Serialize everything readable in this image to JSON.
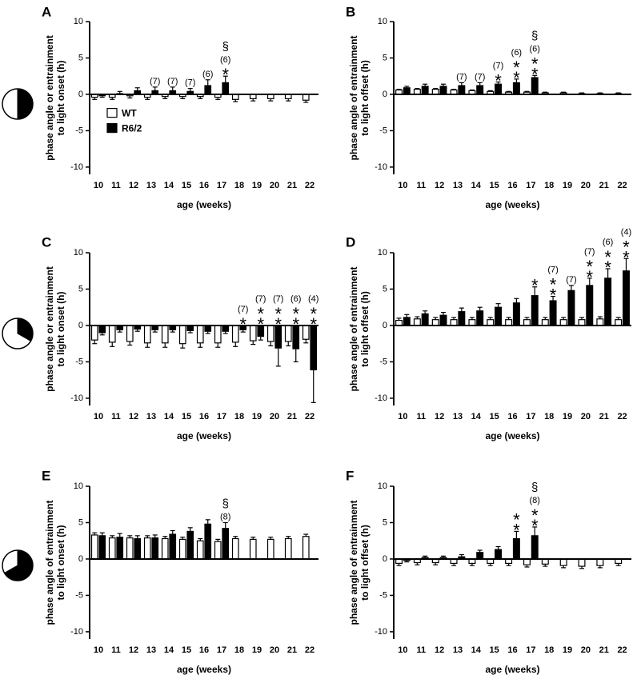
{
  "figure": {
    "colors": {
      "wt": "#ffffff",
      "r62": "#000000",
      "stroke": "#000000",
      "bg": "#ffffff"
    },
    "light_dark_icons": [
      {
        "name": "light-dark-cycle-icon-12-12",
        "dark_fraction": 0.5
      },
      {
        "name": "light-dark-cycle-icon-short-dark",
        "dark_fraction": 0.333
      },
      {
        "name": "light-dark-cycle-icon-long-dark",
        "dark_fraction": 0.667
      }
    ],
    "legend": {
      "wt": "WT",
      "r62": "R6/2"
    }
  },
  "chart_data": [
    {
      "type": "bar",
      "panel": "A",
      "ylabel": "phase angle or entrainment\nto light onset (h)",
      "xlabel": "age (weeks)",
      "ylim": [
        -11,
        10
      ],
      "yticks": [
        10,
        5,
        0,
        -5,
        -10
      ],
      "categories": [
        "10",
        "11",
        "12",
        "13",
        "14",
        "15",
        "16",
        "17",
        "18",
        "19",
        "20",
        "21",
        "22"
      ],
      "series": [
        {
          "name": "WT",
          "values": [
            -0.4,
            -0.4,
            -0.2,
            -0.4,
            -0.3,
            -0.3,
            -0.3,
            -0.4,
            -0.7,
            -0.6,
            -0.6,
            -0.6,
            -0.8
          ],
          "errors": [
            0.3,
            0.3,
            0.3,
            0.3,
            0.3,
            0.3,
            0.3,
            0.3,
            0.3,
            0.3,
            0.3,
            0.3,
            0.3
          ]
        },
        {
          "name": "R6/2",
          "values": [
            -0.2,
            0.1,
            0.5,
            0.5,
            0.5,
            0.4,
            1.2,
            1.6,
            null,
            null,
            null,
            null,
            null
          ],
          "errors": [
            0.2,
            0.3,
            0.4,
            0.5,
            0.5,
            0.4,
            0.8,
            0.9,
            null,
            null,
            null,
            null,
            null
          ]
        }
      ],
      "annotations": [
        {
          "category": "13",
          "lines": [
            "(7)"
          ]
        },
        {
          "category": "14",
          "lines": [
            "(7)"
          ]
        },
        {
          "category": "15",
          "lines": [
            "(7)"
          ]
        },
        {
          "category": "16",
          "lines": [
            "(6)"
          ]
        },
        {
          "category": "17",
          "lines": [
            "§",
            "(6)",
            "*"
          ]
        }
      ],
      "legend_shown": true
    },
    {
      "type": "bar",
      "panel": "B",
      "ylabel": "phase angle of entrainment\nto light offset (h)",
      "xlabel": "age (weeks)",
      "ylim": [
        -11,
        10
      ],
      "yticks": [
        10,
        5,
        0,
        -5,
        -10
      ],
      "categories": [
        "10",
        "11",
        "12",
        "13",
        "14",
        "15",
        "16",
        "17",
        "18",
        "19",
        "20",
        "21",
        "22"
      ],
      "series": [
        {
          "name": "WT",
          "values": [
            0.6,
            0.7,
            0.7,
            0.6,
            0.5,
            0.4,
            0.3,
            0.3,
            0.2,
            0.2,
            0.1,
            0.1,
            0.1
          ],
          "errors": [
            0.1,
            0.1,
            0.1,
            0.1,
            0.1,
            0.1,
            0.1,
            0.1,
            0.1,
            0.1,
            0.1,
            0.1,
            0.1
          ]
        },
        {
          "name": "R6/2",
          "values": [
            0.9,
            1.1,
            1.1,
            1.2,
            1.2,
            1.4,
            1.6,
            2.3,
            null,
            null,
            null,
            null,
            null
          ],
          "errors": [
            0.2,
            0.3,
            0.3,
            0.4,
            0.4,
            0.3,
            0.5,
            0.3,
            null,
            null,
            null,
            null,
            null
          ]
        }
      ],
      "annotations": [
        {
          "category": "13",
          "lines": [
            "(7)"
          ]
        },
        {
          "category": "14",
          "lines": [
            "(7)"
          ]
        },
        {
          "category": "15",
          "lines": [
            "(7)",
            "*"
          ]
        },
        {
          "category": "16",
          "lines": [
            "(6)",
            "*",
            "*"
          ]
        },
        {
          "category": "17",
          "lines": [
            "§",
            "(6)",
            "*",
            "*"
          ]
        }
      ],
      "legend_shown": false
    },
    {
      "type": "bar",
      "panel": "C",
      "ylabel": "phase angle or entrainment\nto light onset (h)",
      "xlabel": "age (weeks)",
      "ylim": [
        -11,
        10
      ],
      "yticks": [
        10,
        5,
        0,
        -5,
        -10
      ],
      "categories": [
        "10",
        "11",
        "12",
        "13",
        "14",
        "15",
        "16",
        "17",
        "18",
        "19",
        "20",
        "21",
        "22"
      ],
      "series": [
        {
          "name": "WT",
          "values": [
            -2.0,
            -2.3,
            -2.2,
            -2.4,
            -2.4,
            -2.5,
            -2.4,
            -2.4,
            -2.3,
            -2.1,
            -2.2,
            -2.2,
            -1.9
          ],
          "errors": [
            0.5,
            0.6,
            0.5,
            0.6,
            0.6,
            0.6,
            0.6,
            0.6,
            0.6,
            0.5,
            0.6,
            0.6,
            0.5
          ]
        },
        {
          "name": "R6/2",
          "values": [
            -1.0,
            -0.6,
            -0.5,
            -0.6,
            -0.6,
            -0.7,
            -0.8,
            -0.8,
            -0.6,
            -1.5,
            -3.1,
            -3.2,
            -6.1
          ],
          "errors": [
            0.3,
            0.3,
            0.3,
            0.3,
            0.3,
            0.3,
            0.3,
            0.3,
            0.3,
            0.5,
            2.5,
            1.8,
            4.5
          ]
        }
      ],
      "annotations": [
        {
          "category": "18",
          "lines": [
            "(7)",
            "*"
          ]
        },
        {
          "category": "19",
          "lines": [
            "(7)",
            "*",
            "*"
          ]
        },
        {
          "category": "20",
          "lines": [
            "(7)",
            "*",
            "*"
          ]
        },
        {
          "category": "21",
          "lines": [
            "(6)",
            "*",
            "*"
          ]
        },
        {
          "category": "22",
          "lines": [
            "(4)",
            "*",
            "*"
          ]
        }
      ],
      "legend_shown": false
    },
    {
      "type": "bar",
      "panel": "D",
      "ylabel": "phase angle of entrainment\nto light offset (h)",
      "xlabel": "age (weeks)",
      "ylim": [
        -11,
        10
      ],
      "yticks": [
        10,
        5,
        0,
        -5,
        -10
      ],
      "categories": [
        "10",
        "11",
        "12",
        "13",
        "14",
        "15",
        "16",
        "17",
        "18",
        "19",
        "20",
        "21",
        "22"
      ],
      "series": [
        {
          "name": "WT",
          "values": [
            0.7,
            0.9,
            0.8,
            0.8,
            0.8,
            0.8,
            0.8,
            0.8,
            0.8,
            0.8,
            0.8,
            0.9,
            0.8
          ],
          "errors": [
            0.3,
            0.3,
            0.3,
            0.3,
            0.3,
            0.3,
            0.3,
            0.3,
            0.3,
            0.3,
            0.3,
            0.3,
            0.3
          ]
        },
        {
          "name": "R6/2",
          "values": [
            1.1,
            1.6,
            1.4,
            1.9,
            2.0,
            2.5,
            3.1,
            4.1,
            3.4,
            4.8,
            5.5,
            6.5,
            7.5
          ],
          "errors": [
            0.4,
            0.4,
            0.4,
            0.5,
            0.5,
            0.5,
            0.6,
            1.2,
            0.6,
            0.7,
            1.0,
            1.3,
            1.7
          ]
        }
      ],
      "annotations": [
        {
          "category": "17",
          "lines": [
            "*"
          ]
        },
        {
          "category": "18",
          "lines": [
            "(7)",
            "*",
            "*"
          ]
        },
        {
          "category": "19",
          "lines": [
            "(7)"
          ]
        },
        {
          "category": "20",
          "lines": [
            "(7)",
            "*",
            "*"
          ]
        },
        {
          "category": "21",
          "lines": [
            "(6)",
            "*",
            "*"
          ]
        },
        {
          "category": "22",
          "lines": [
            "(4)",
            "*",
            "*"
          ]
        }
      ],
      "legend_shown": false
    },
    {
      "type": "bar",
      "panel": "E",
      "ylabel": "phase angle of entrainment\nto light onset (h)",
      "xlabel": "age (weeks)",
      "ylim": [
        -11,
        10
      ],
      "yticks": [
        10,
        5,
        0,
        -5,
        -10
      ],
      "categories": [
        "10",
        "11",
        "12",
        "13",
        "14",
        "15",
        "16",
        "17",
        "18",
        "19",
        "20",
        "21",
        "22"
      ],
      "series": [
        {
          "name": "WT",
          "values": [
            3.3,
            2.9,
            2.9,
            2.9,
            2.8,
            2.7,
            2.5,
            2.4,
            2.8,
            2.7,
            2.7,
            2.8,
            3.1
          ],
          "errors": [
            0.3,
            0.3,
            0.3,
            0.3,
            0.3,
            0.3,
            0.3,
            0.3,
            0.3,
            0.3,
            0.3,
            0.3,
            0.3
          ]
        },
        {
          "name": "R6/2",
          "values": [
            3.2,
            3.0,
            2.8,
            2.9,
            3.4,
            3.8,
            4.8,
            4.2,
            null,
            null,
            null,
            null,
            null
          ],
          "errors": [
            0.4,
            0.5,
            0.4,
            0.4,
            0.5,
            0.5,
            0.6,
            0.8,
            null,
            null,
            null,
            null,
            null
          ]
        }
      ],
      "annotations": [
        {
          "category": "17",
          "lines": [
            "§",
            "(8)"
          ]
        }
      ],
      "legend_shown": false
    },
    {
      "type": "bar",
      "panel": "F",
      "ylabel": "phase angle of entrainment\nto light offset (h)",
      "xlabel": "age (weeks)",
      "ylim": [
        -11,
        10
      ],
      "yticks": [
        10,
        5,
        0,
        -5,
        -10
      ],
      "categories": [
        "10",
        "11",
        "12",
        "13",
        "14",
        "15",
        "16",
        "17",
        "18",
        "19",
        "20",
        "21",
        "22"
      ],
      "series": [
        {
          "name": "WT",
          "values": [
            -0.6,
            -0.5,
            -0.5,
            -0.6,
            -0.6,
            -0.6,
            -0.6,
            -0.8,
            -0.7,
            -0.9,
            -1.0,
            -0.9,
            -0.6
          ],
          "errors": [
            0.3,
            0.3,
            0.3,
            0.3,
            0.3,
            0.3,
            0.3,
            0.3,
            0.3,
            0.3,
            0.3,
            0.3,
            0.3
          ]
        },
        {
          "name": "R6/2",
          "values": [
            -0.2,
            0.2,
            0.2,
            0.3,
            0.9,
            1.3,
            2.8,
            3.2,
            null,
            null,
            null,
            null,
            null
          ],
          "errors": [
            0.2,
            0.2,
            0.2,
            0.3,
            0.3,
            0.4,
            1.0,
            1.2,
            null,
            null,
            null,
            null,
            null
          ]
        }
      ],
      "annotations": [
        {
          "category": "16",
          "lines": [
            "*",
            "*"
          ]
        },
        {
          "category": "17",
          "lines": [
            "§",
            "(8)",
            "*",
            "*"
          ]
        }
      ],
      "legend_shown": false
    }
  ]
}
